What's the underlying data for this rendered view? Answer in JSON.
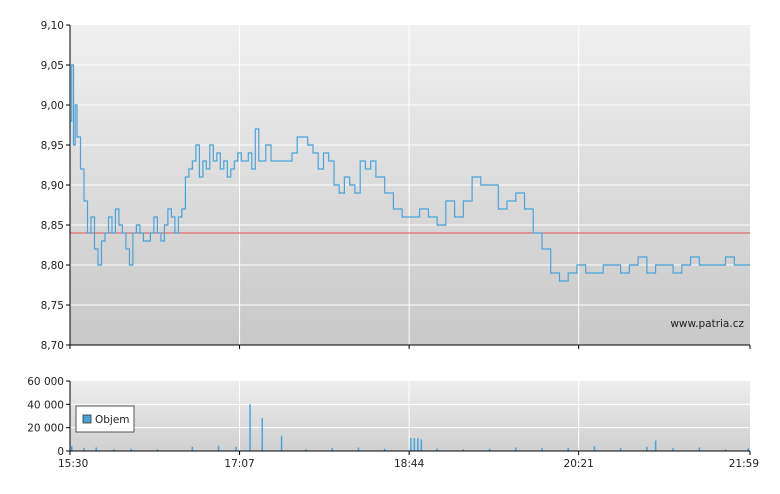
{
  "watermark": "www.patria.cz",
  "legend": {
    "label": "Objem"
  },
  "colors": {
    "line": "#4aa3d8",
    "reference": "#e05050",
    "bar": "#4aa3d8",
    "grid": "#ffffff"
  },
  "chart_data": [
    {
      "type": "line",
      "name": "price",
      "x_ticks": [
        "15:30",
        "17:07",
        "18:44",
        "20:21",
        "21:59"
      ],
      "x_range": [
        "15:30",
        "21:59"
      ],
      "y_ticks": [
        "9,10",
        "9,05",
        "9,00",
        "8,95",
        "8,90",
        "8,85",
        "8,80",
        "8,75",
        "8,70"
      ],
      "ylim": [
        8.7,
        9.1
      ],
      "reference_line": 8.84,
      "series": [
        {
          "x": [
            "15:30",
            "15:31",
            "15:32",
            "15:33",
            "15:34",
            "15:36",
            "15:38",
            "15:40",
            "15:42",
            "15:44",
            "15:46",
            "15:48",
            "15:50",
            "15:52",
            "15:54",
            "15:56",
            "15:58",
            "16:00",
            "16:02",
            "16:04",
            "16:06",
            "16:08",
            "16:10",
            "16:12",
            "16:14",
            "16:16",
            "16:18",
            "16:20",
            "16:22",
            "16:24",
            "16:26",
            "16:28",
            "16:30",
            "16:32",
            "16:34",
            "16:36",
            "16:38",
            "16:40",
            "16:42",
            "16:44",
            "16:46",
            "16:48",
            "16:50",
            "16:52",
            "16:54",
            "16:56",
            "16:58",
            "17:00",
            "17:02",
            "17:04",
            "17:06",
            "17:08",
            "17:10",
            "17:12",
            "17:14",
            "17:16",
            "17:18",
            "17:20",
            "17:22",
            "17:25",
            "17:28",
            "17:31",
            "17:34",
            "17:37",
            "17:40",
            "17:43",
            "17:46",
            "17:49",
            "17:52",
            "17:55",
            "17:58",
            "18:01",
            "18:04",
            "18:07",
            "18:10",
            "18:13",
            "18:16",
            "18:19",
            "18:22",
            "18:25",
            "18:30",
            "18:35",
            "18:40",
            "18:45",
            "18:50",
            "18:55",
            "19:00",
            "19:05",
            "19:10",
            "19:15",
            "19:20",
            "19:25",
            "19:30",
            "19:35",
            "19:40",
            "19:45",
            "19:50",
            "19:55",
            "20:00",
            "20:05",
            "20:10",
            "20:15",
            "20:20",
            "20:25",
            "20:30",
            "20:35",
            "20:40",
            "20:45",
            "20:50",
            "20:55",
            "21:00",
            "21:05",
            "21:10",
            "21:15",
            "21:20",
            "21:25",
            "21:30",
            "21:35",
            "21:40",
            "21:45",
            "21:50",
            "21:55",
            "21:59"
          ],
          "values": [
            8.98,
            9.05,
            8.95,
            9.0,
            8.96,
            8.92,
            8.88,
            8.84,
            8.86,
            8.82,
            8.8,
            8.83,
            8.84,
            8.86,
            8.84,
            8.87,
            8.85,
            8.84,
            8.82,
            8.8,
            8.84,
            8.85,
            8.84,
            8.83,
            8.83,
            8.84,
            8.86,
            8.84,
            8.83,
            8.85,
            8.87,
            8.86,
            8.84,
            8.86,
            8.87,
            8.91,
            8.92,
            8.93,
            8.95,
            8.91,
            8.93,
            8.92,
            8.95,
            8.93,
            8.94,
            8.92,
            8.93,
            8.91,
            8.92,
            8.93,
            8.94,
            8.93,
            8.93,
            8.94,
            8.92,
            8.97,
            8.93,
            8.93,
            8.95,
            8.93,
            8.93,
            8.93,
            8.93,
            8.94,
            8.96,
            8.96,
            8.95,
            8.94,
            8.92,
            8.94,
            8.93,
            8.9,
            8.89,
            8.91,
            8.9,
            8.89,
            8.93,
            8.92,
            8.93,
            8.91,
            8.89,
            8.87,
            8.86,
            8.86,
            8.87,
            8.86,
            8.85,
            8.88,
            8.86,
            8.88,
            8.91,
            8.9,
            8.9,
            8.87,
            8.88,
            8.89,
            8.87,
            8.84,
            8.82,
            8.79,
            8.78,
            8.79,
            8.8,
            8.79,
            8.79,
            8.8,
            8.8,
            8.79,
            8.8,
            8.81,
            8.79,
            8.8,
            8.8,
            8.79,
            8.8,
            8.81,
            8.8,
            8.8,
            8.8,
            8.81,
            8.8,
            8.8,
            8.8
          ]
        }
      ]
    },
    {
      "type": "bar",
      "name": "volume",
      "x_ticks": [
        "15:30",
        "17:07",
        "18:44",
        "20:21",
        "21:59"
      ],
      "y_ticks": [
        "60 000",
        "40 000",
        "20 000",
        "0"
      ],
      "ylim": [
        0,
        60000
      ],
      "series": [
        {
          "name": "Objem",
          "x": [
            "15:31",
            "15:38",
            "15:45",
            "15:55",
            "16:05",
            "16:20",
            "16:40",
            "16:55",
            "17:05",
            "17:13",
            "17:20",
            "17:31",
            "17:45",
            "18:00",
            "18:15",
            "18:30",
            "18:45",
            "18:47",
            "18:49",
            "18:51",
            "19:00",
            "19:15",
            "19:30",
            "19:45",
            "20:00",
            "20:15",
            "20:30",
            "20:45",
            "21:00",
            "21:05",
            "21:15",
            "21:30",
            "21:45",
            "21:58"
          ],
          "values": [
            4000,
            2500,
            3000,
            1500,
            2000,
            1500,
            3500,
            4500,
            3500,
            40000,
            28000,
            13000,
            1500,
            2500,
            3000,
            2000,
            11000,
            11000,
            11000,
            10000,
            2000,
            1500,
            2000,
            3000,
            2500,
            2500,
            4000,
            2500,
            3500,
            9000,
            2500,
            3000,
            1500,
            2500
          ]
        }
      ]
    }
  ]
}
